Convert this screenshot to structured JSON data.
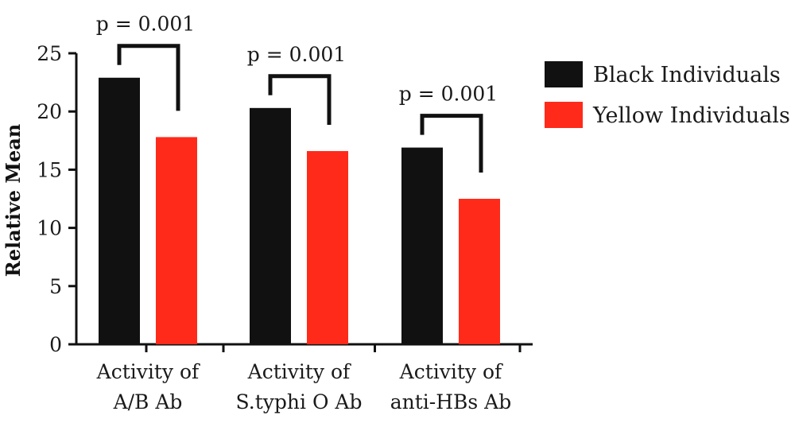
{
  "chart_data": {
    "type": "bar",
    "title": "",
    "xlabel": "",
    "ylabel": "Relative Mean",
    "ylim": [
      0,
      25
    ],
    "yticks": [
      0,
      5,
      10,
      15,
      20,
      25
    ],
    "categories": [
      [
        "Activity of",
        "A/B Ab"
      ],
      [
        "Activity of",
        "S.typhi O Ab"
      ],
      [
        "Activity of",
        "anti-HBs Ab"
      ]
    ],
    "series": [
      {
        "name": "Black Individuals",
        "color": "#111111",
        "values": [
          22.9,
          20.3,
          16.9
        ]
      },
      {
        "name": "Yellow Individuals",
        "color": "#ff2a1a",
        "values": [
          17.8,
          16.6,
          12.5
        ]
      }
    ],
    "annotations": [
      "p = 0.001",
      "p = 0.001",
      "p = 0.001"
    ],
    "legend_position": "top-right",
    "grid": false
  }
}
